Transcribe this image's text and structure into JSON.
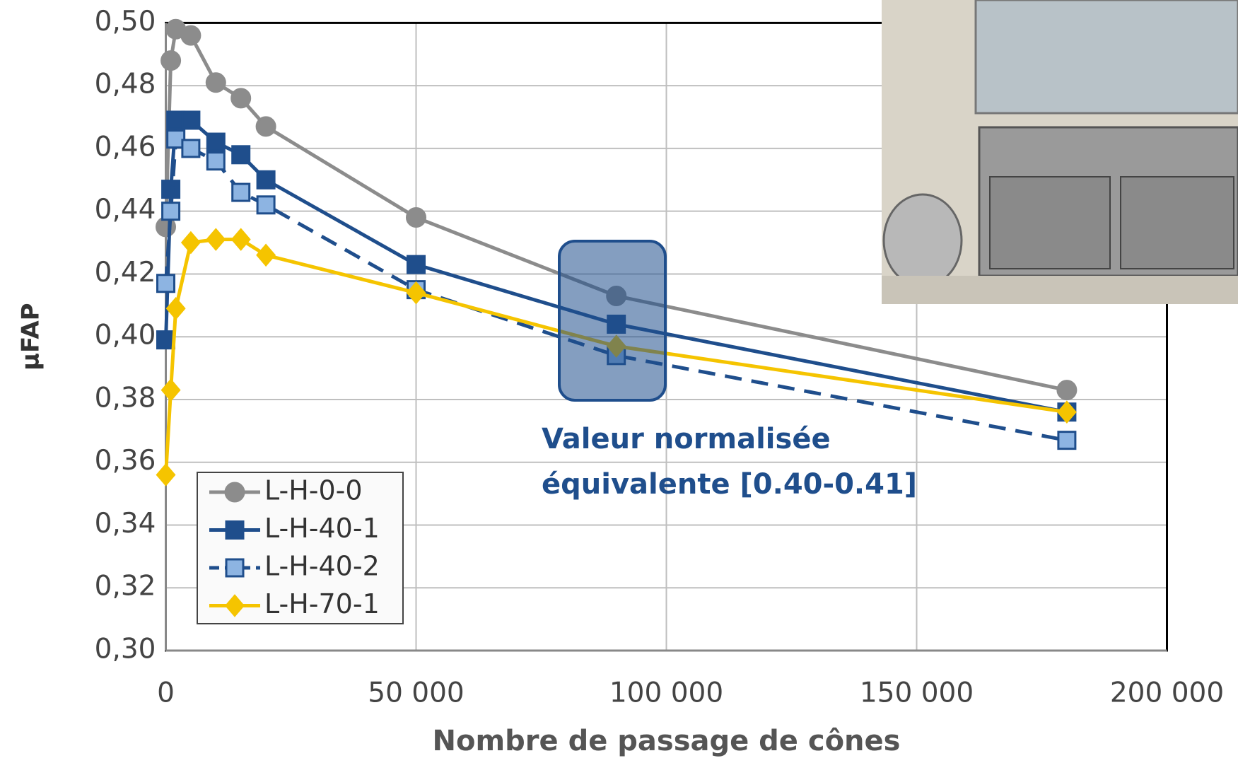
{
  "chart_data": {
    "type": "line",
    "x_label": "Nombre de passage de cônes",
    "y_label": "µFAP",
    "x": [
      0,
      1000,
      2000,
      5000,
      10000,
      15000,
      20000,
      50000,
      90000,
      180000
    ],
    "series": [
      {
        "name": "L-H-0-0",
        "color": "#8c8c8c",
        "marker": "circle",
        "dashed": false,
        "values": [
          0.435,
          0.488,
          0.498,
          0.496,
          0.481,
          0.476,
          0.467,
          0.438,
          0.413,
          0.383
        ]
      },
      {
        "name": "L-H-40-1",
        "color": "#1f4e8c",
        "marker": "square",
        "dashed": false,
        "values": [
          0.399,
          0.447,
          0.469,
          0.469,
          0.462,
          0.458,
          0.45,
          0.423,
          0.404,
          0.376
        ]
      },
      {
        "name": "L-H-40-2",
        "color": "#1f4e8c",
        "marker_fill": "#8db4e2",
        "marker": "square",
        "dashed": true,
        "values": [
          0.417,
          0.44,
          0.463,
          0.46,
          0.456,
          0.446,
          0.442,
          0.415,
          0.394,
          0.367
        ]
      },
      {
        "name": "L-H-70-1",
        "color": "#f5c400",
        "marker": "diamond",
        "dashed": false,
        "values": [
          0.356,
          0.383,
          0.409,
          0.43,
          0.431,
          0.431,
          0.426,
          0.414,
          0.397,
          0.376
        ]
      }
    ],
    "annotation": [
      "Valeur normalisée",
      "équivalente [0.40-0.41]"
    ],
    "xlim": [
      0,
      200000
    ],
    "xticks": [
      0,
      {
        "value": 50000,
        "label": "50 000"
      },
      {
        "value": 100000,
        "label": "100 000"
      },
      {
        "value": 150000,
        "label": "150 000"
      },
      {
        "value": 200000,
        "label": "200 000"
      }
    ],
    "ylim": [
      0.3,
      0.5
    ],
    "yticks": [
      {
        "value": 0.3,
        "label": "0,30"
      },
      {
        "value": 0.32,
        "label": "0,32"
      },
      {
        "value": 0.34,
        "label": "0,34"
      },
      {
        "value": 0.36,
        "label": "0,36"
      },
      {
        "value": 0.38,
        "label": "0,38"
      },
      {
        "value": 0.4,
        "label": "0,40"
      },
      {
        "value": 0.42,
        "label": "0,42"
      },
      {
        "value": 0.44,
        "label": "0,44"
      },
      {
        "value": 0.46,
        "label": "0,46"
      },
      {
        "value": 0.48,
        "label": "0,48"
      },
      {
        "value": 0.5,
        "label": "0,50"
      }
    ],
    "grid": true
  }
}
